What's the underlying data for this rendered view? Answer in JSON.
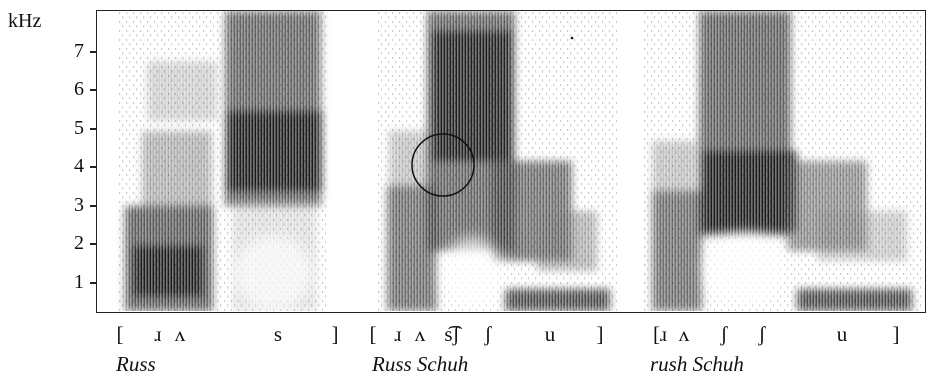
{
  "figure": {
    "y_axis": {
      "unit": "kHz",
      "ticks": [
        "1",
        "2",
        "3",
        "4",
        "5",
        "6",
        "7"
      ]
    },
    "panels": [
      {
        "caption": "Russ",
        "transcription": [
          "[",
          "ɹ",
          "ʌ",
          "s",
          "]"
        ]
      },
      {
        "caption": "Russ Schuh",
        "transcription": [
          "[",
          "ɹ",
          "ʌ",
          "s͡ʃ",
          "ʃ",
          "u",
          "]"
        ]
      },
      {
        "caption": "rush Schuh",
        "transcription": [
          "[ɹ",
          "ʌ",
          "ʃ",
          "ʃ",
          "u",
          "]"
        ]
      }
    ],
    "colors": {
      "ink": "#111111",
      "energy": "#1a1a1a",
      "background": "#ffffff"
    }
  }
}
